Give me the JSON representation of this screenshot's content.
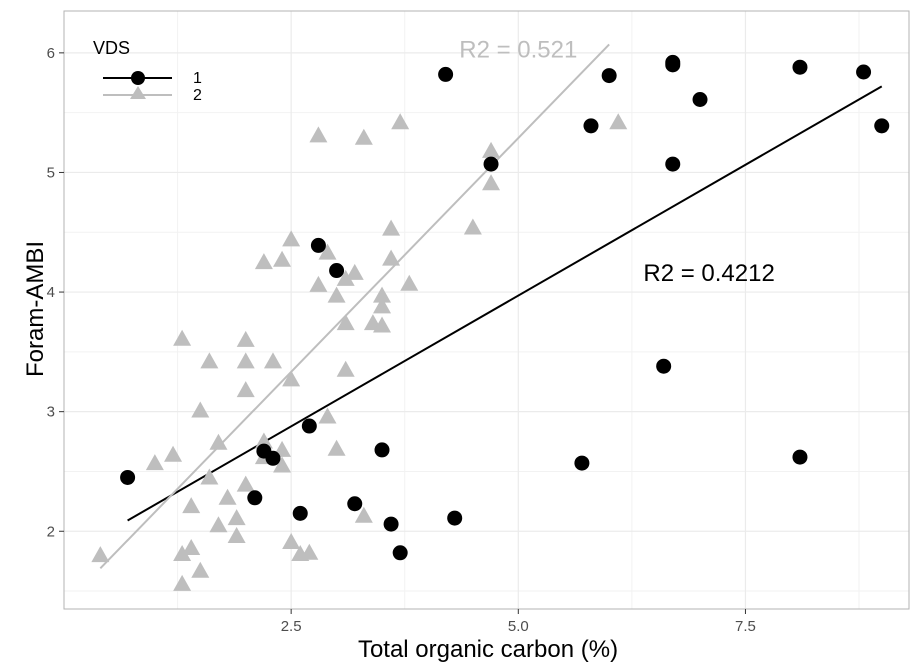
{
  "chart_data": {
    "type": "scatter",
    "xlabel": "Total organic carbon (%)",
    "ylabel": "Foram-AMBI",
    "xlim": [
      0.0,
      9.3
    ],
    "ylim": [
      1.35,
      6.35
    ],
    "x_ticks": [
      2.5,
      5.0,
      7.5
    ],
    "x_tick_labels": [
      "2.5",
      "5.0",
      "7.5"
    ],
    "y_ticks": [
      2,
      3,
      4,
      5,
      6
    ],
    "y_tick_labels": [
      "2",
      "3",
      "4",
      "5",
      "6"
    ],
    "grid": true,
    "legend": {
      "title": "VDS",
      "position": "top-left",
      "entries": [
        {
          "label": "1",
          "shape": "circle",
          "color": "#000000"
        },
        {
          "label": "2",
          "shape": "triangle",
          "color": "#bebebe"
        }
      ]
    },
    "series": [
      {
        "name": "1",
        "marker": "circle",
        "color": "#000000",
        "points": [
          [
            0.7,
            2.45
          ],
          [
            2.1,
            2.28
          ],
          [
            2.2,
            2.67
          ],
          [
            2.3,
            2.61
          ],
          [
            2.6,
            2.15
          ],
          [
            2.7,
            2.88
          ],
          [
            2.8,
            4.39
          ],
          [
            3.0,
            4.18
          ],
          [
            3.2,
            2.23
          ],
          [
            3.5,
            2.68
          ],
          [
            3.6,
            2.06
          ],
          [
            3.7,
            1.82
          ],
          [
            4.2,
            5.82
          ],
          [
            4.3,
            2.11
          ],
          [
            4.7,
            5.07
          ],
          [
            5.7,
            2.57
          ],
          [
            5.8,
            5.39
          ],
          [
            6.0,
            5.81
          ],
          [
            6.6,
            3.38
          ],
          [
            6.7,
            5.92
          ],
          [
            6.7,
            5.9
          ],
          [
            6.7,
            5.07
          ],
          [
            7.0,
            5.61
          ],
          [
            8.1,
            5.88
          ],
          [
            8.1,
            2.62
          ],
          [
            8.8,
            5.84
          ],
          [
            9.0,
            5.39
          ]
        ],
        "fit": {
          "x": [
            0.7,
            9.0
          ],
          "y": [
            2.09,
            5.72
          ],
          "r2_label": "R2 = 0.4212",
          "r2_at": [
            7.1,
            4.16
          ]
        }
      },
      {
        "name": "2",
        "marker": "triangle",
        "color": "#bebebe",
        "points": [
          [
            0.4,
            1.8
          ],
          [
            1.0,
            2.57
          ],
          [
            1.2,
            2.64
          ],
          [
            1.3,
            3.61
          ],
          [
            1.3,
            1.81
          ],
          [
            1.3,
            1.56
          ],
          [
            1.4,
            2.21
          ],
          [
            1.4,
            1.86
          ],
          [
            1.5,
            3.01
          ],
          [
            1.5,
            1.67
          ],
          [
            1.6,
            3.42
          ],
          [
            1.6,
            2.45
          ],
          [
            1.7,
            2.74
          ],
          [
            1.7,
            2.05
          ],
          [
            1.8,
            2.28
          ],
          [
            1.9,
            2.11
          ],
          [
            1.9,
            1.96
          ],
          [
            2.0,
            3.6
          ],
          [
            2.0,
            3.42
          ],
          [
            2.0,
            3.18
          ],
          [
            2.0,
            2.39
          ],
          [
            2.2,
            4.25
          ],
          [
            2.2,
            2.75
          ],
          [
            2.2,
            2.62
          ],
          [
            2.3,
            3.42
          ],
          [
            2.4,
            4.27
          ],
          [
            2.4,
            2.68
          ],
          [
            2.4,
            2.55
          ],
          [
            2.5,
            4.44
          ],
          [
            2.5,
            3.27
          ],
          [
            2.5,
            1.91
          ],
          [
            2.6,
            1.81
          ],
          [
            2.7,
            1.82
          ],
          [
            2.8,
            5.31
          ],
          [
            2.8,
            4.06
          ],
          [
            2.9,
            4.33
          ],
          [
            2.9,
            2.96
          ],
          [
            3.0,
            3.97
          ],
          [
            3.0,
            2.69
          ],
          [
            3.1,
            4.11
          ],
          [
            3.1,
            3.74
          ],
          [
            3.1,
            3.35
          ],
          [
            3.2,
            4.16
          ],
          [
            3.3,
            5.29
          ],
          [
            3.3,
            2.13
          ],
          [
            3.4,
            3.74
          ],
          [
            3.5,
            3.72
          ],
          [
            3.5,
            3.88
          ],
          [
            3.5,
            3.97
          ],
          [
            3.6,
            4.53
          ],
          [
            3.6,
            4.28
          ],
          [
            3.7,
            5.42
          ],
          [
            3.8,
            4.07
          ],
          [
            4.5,
            4.54
          ],
          [
            4.7,
            5.18
          ],
          [
            4.7,
            4.91
          ],
          [
            6.1,
            5.42
          ]
        ],
        "fit": {
          "x": [
            0.4,
            6.0
          ],
          "y": [
            1.69,
            6.07
          ],
          "r2_label": "R2 = 0.521",
          "r2_at": [
            5.0,
            6.03
          ]
        }
      }
    ]
  }
}
